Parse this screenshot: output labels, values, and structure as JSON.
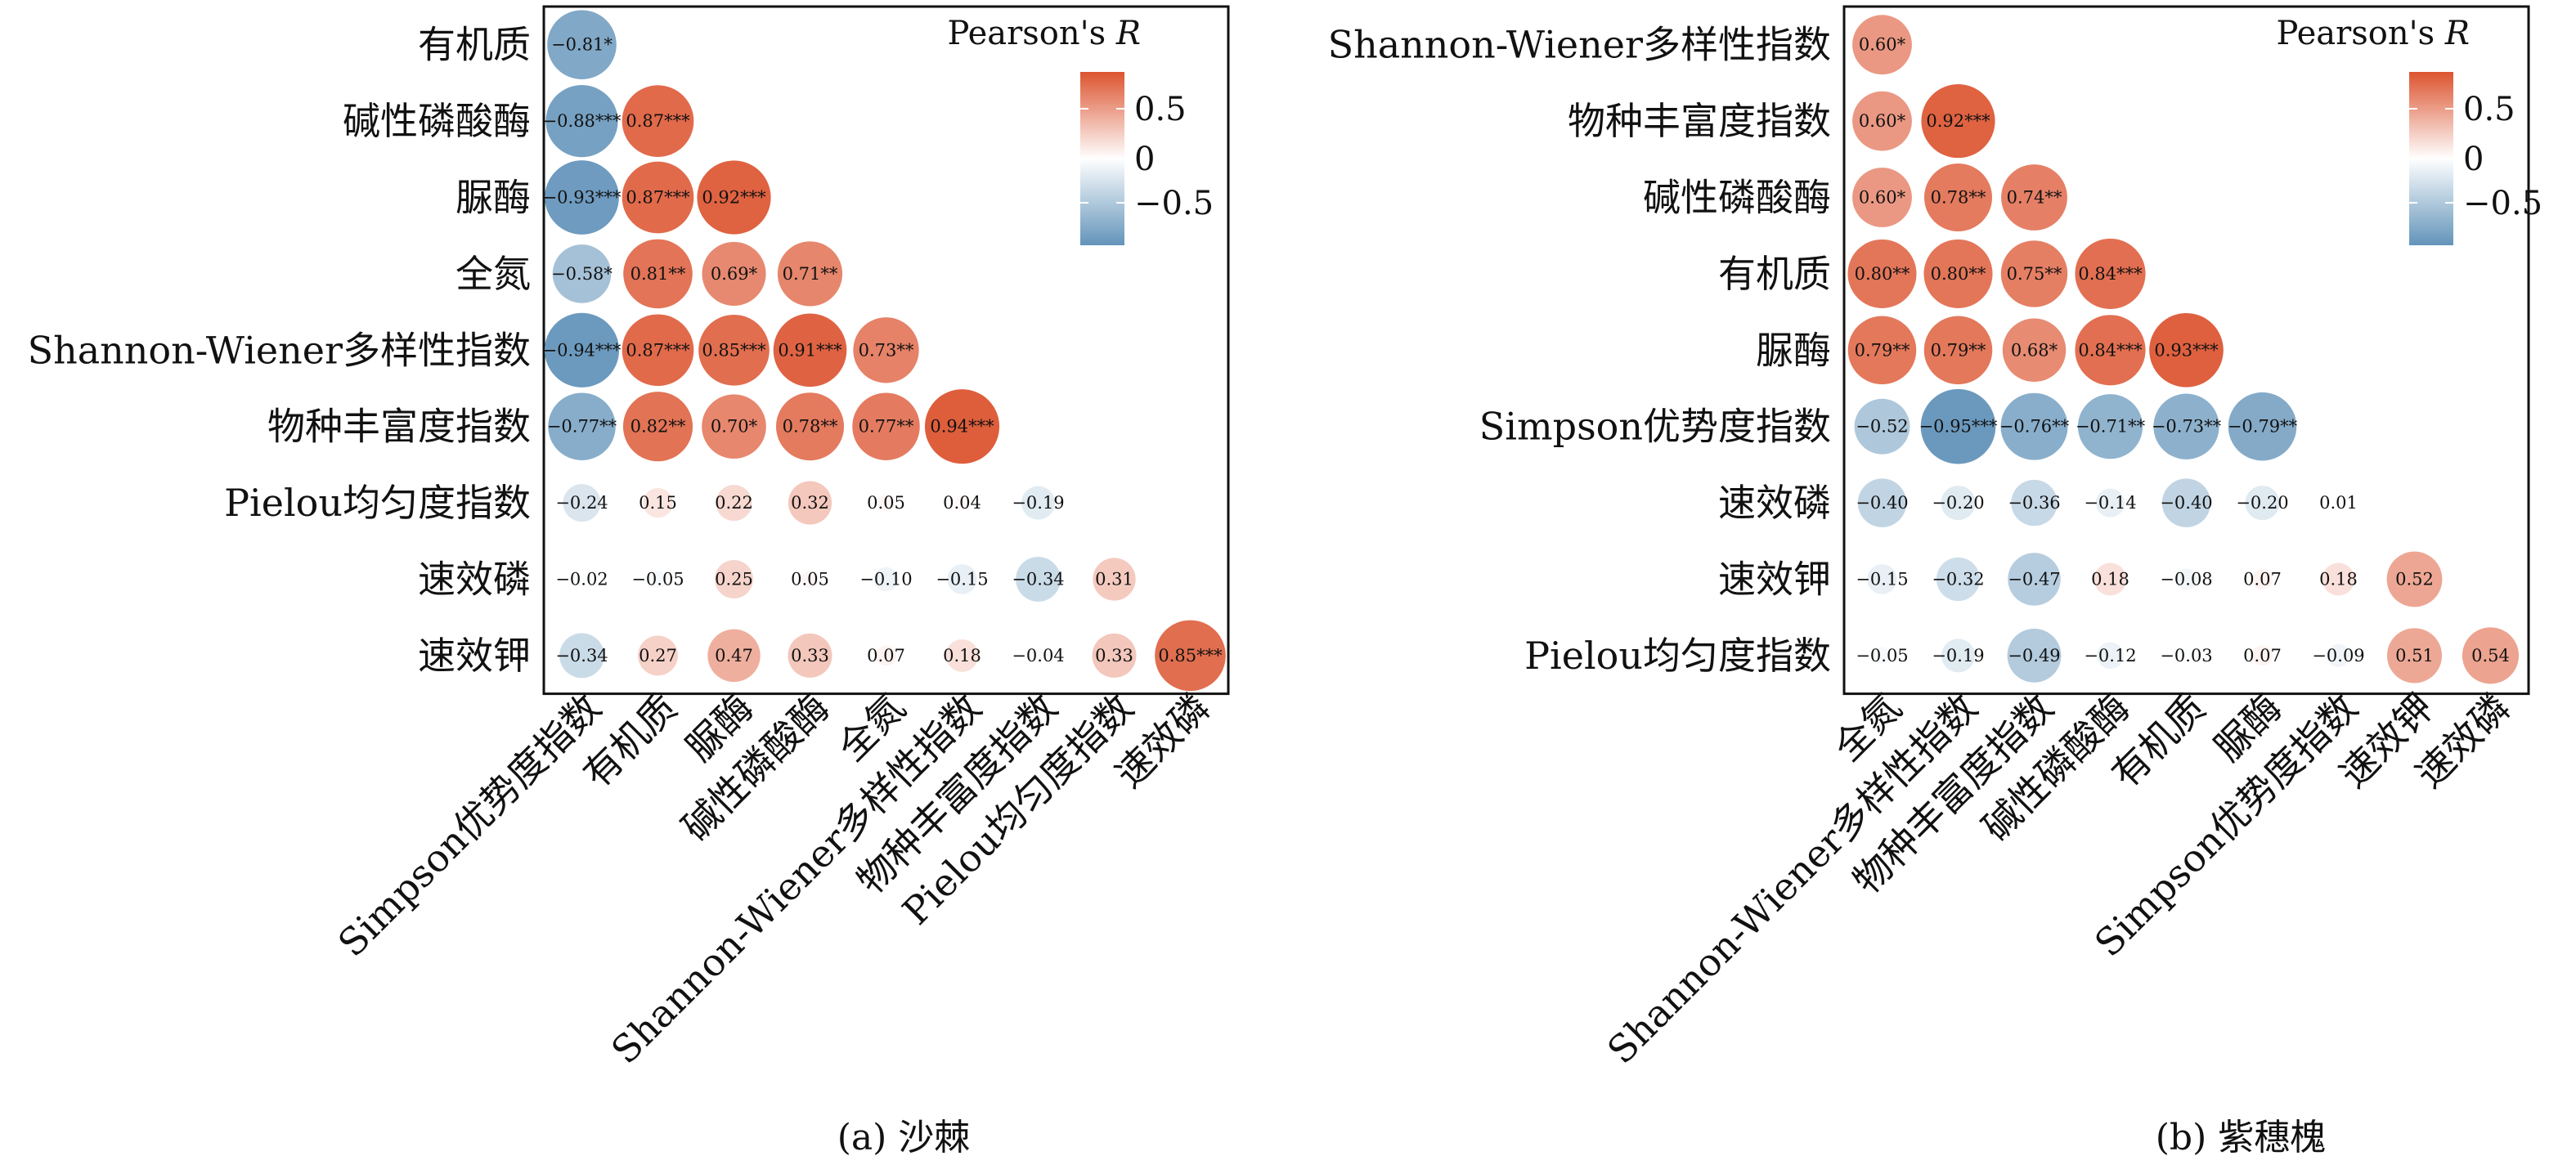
{
  "colors": {
    "positive": "#dc5430",
    "negative": "#6394ba",
    "neutral": "#ffffff"
  },
  "legend_title": "Pearson's R",
  "chart_data": [
    {
      "type": "correlogram",
      "caption": "(a) 沙棘",
      "legend": {
        "title": "Pearson's R",
        "ticks": [
          "0.5",
          "0",
          "−0.5"
        ],
        "range": [
          -1,
          1
        ],
        "placement": "top-right"
      },
      "row_labels": [
        "有机质",
        "碱性磷酸酶",
        "脲酶",
        "全氮",
        "Shannon-Wiener多样性指数",
        "物种丰富度指数",
        "Pielou均匀度指数",
        "速效磷",
        "速效钾"
      ],
      "col_labels": [
        "Simpson优势度指数",
        "有机质",
        "脲酶",
        "碱性磷酸酶",
        "全氮",
        "Shannon-Wiener多样性指数",
        "物种丰富度指数",
        "Pielou均匀度指数",
        "速效磷"
      ],
      "cells": [
        [
          [
            -0.81,
            "*"
          ]
        ],
        [
          [
            -0.88,
            "***"
          ],
          [
            0.87,
            "***"
          ]
        ],
        [
          [
            -0.93,
            "***"
          ],
          [
            0.87,
            "***"
          ],
          [
            0.92,
            "***"
          ]
        ],
        [
          [
            -0.58,
            "*"
          ],
          [
            0.81,
            "**"
          ],
          [
            0.69,
            "*"
          ],
          [
            0.71,
            "**"
          ]
        ],
        [
          [
            -0.94,
            "***"
          ],
          [
            0.87,
            "***"
          ],
          [
            0.85,
            "***"
          ],
          [
            0.91,
            "***"
          ],
          [
            0.73,
            "**"
          ]
        ],
        [
          [
            -0.77,
            "**"
          ],
          [
            0.82,
            "**"
          ],
          [
            0.7,
            "*"
          ],
          [
            0.78,
            "**"
          ],
          [
            0.77,
            "**"
          ],
          [
            0.94,
            "***"
          ]
        ],
        [
          [
            -0.24,
            ""
          ],
          [
            0.15,
            ""
          ],
          [
            0.22,
            ""
          ],
          [
            0.32,
            ""
          ],
          [
            0.05,
            ""
          ],
          [
            0.04,
            ""
          ],
          [
            -0.19,
            ""
          ]
        ],
        [
          [
            -0.02,
            ""
          ],
          [
            -0.05,
            ""
          ],
          [
            0.25,
            ""
          ],
          [
            0.05,
            ""
          ],
          [
            -0.1,
            ""
          ],
          [
            -0.15,
            ""
          ],
          [
            -0.34,
            ""
          ],
          [
            0.31,
            ""
          ]
        ],
        [
          [
            -0.34,
            ""
          ],
          [
            0.27,
            ""
          ],
          [
            0.47,
            ""
          ],
          [
            0.33,
            ""
          ],
          [
            0.07,
            ""
          ],
          [
            0.18,
            ""
          ],
          [
            -0.04,
            ""
          ],
          [
            0.33,
            ""
          ],
          [
            0.85,
            "***"
          ]
        ]
      ]
    },
    {
      "type": "correlogram",
      "caption": "(b) 紫穗槐",
      "legend": {
        "title": "Pearson's R",
        "ticks": [
          "0.5",
          "0",
          "−0.5"
        ],
        "range": [
          -1,
          1
        ],
        "placement": "top-right"
      },
      "row_labels": [
        "Shannon-Wiener多样性指数",
        "物种丰富度指数",
        "碱性磷酸酶",
        "有机质",
        "脲酶",
        "Simpson优势度指数",
        "速效磷",
        "速效钾",
        "Pielou均匀度指数"
      ],
      "col_labels": [
        "全氮",
        "Shannon-Wiener多样性指数",
        "物种丰富度指数",
        "碱性磷酸酶",
        "有机质",
        "脲酶",
        "Simpson优势度指数",
        "速效钾",
        "速效磷"
      ],
      "cells": [
        [
          [
            0.6,
            "*"
          ]
        ],
        [
          [
            0.6,
            "*"
          ],
          [
            0.92,
            "***"
          ]
        ],
        [
          [
            0.6,
            "*"
          ],
          [
            0.78,
            "**"
          ],
          [
            0.74,
            "**"
          ]
        ],
        [
          [
            0.8,
            "**"
          ],
          [
            0.8,
            "**"
          ],
          [
            0.75,
            "**"
          ],
          [
            0.84,
            "***"
          ]
        ],
        [
          [
            0.79,
            "**"
          ],
          [
            0.79,
            "**"
          ],
          [
            0.68,
            "*"
          ],
          [
            0.84,
            "***"
          ],
          [
            0.93,
            "***"
          ]
        ],
        [
          [
            -0.52,
            ""
          ],
          [
            -0.95,
            "***"
          ],
          [
            -0.76,
            "**"
          ],
          [
            -0.71,
            "**"
          ],
          [
            -0.73,
            "**"
          ],
          [
            -0.79,
            "**"
          ]
        ],
        [
          [
            -0.4,
            ""
          ],
          [
            -0.2,
            ""
          ],
          [
            -0.36,
            ""
          ],
          [
            -0.14,
            ""
          ],
          [
            -0.4,
            ""
          ],
          [
            -0.2,
            ""
          ],
          [
            0.01,
            ""
          ]
        ],
        [
          [
            -0.15,
            ""
          ],
          [
            -0.32,
            ""
          ],
          [
            -0.47,
            ""
          ],
          [
            0.18,
            ""
          ],
          [
            -0.08,
            ""
          ],
          [
            0.07,
            ""
          ],
          [
            0.18,
            ""
          ],
          [
            0.52,
            ""
          ]
        ],
        [
          [
            -0.05,
            ""
          ],
          [
            -0.19,
            ""
          ],
          [
            -0.49,
            ""
          ],
          [
            -0.12,
            ""
          ],
          [
            -0.03,
            ""
          ],
          [
            0.07,
            ""
          ],
          [
            -0.09,
            ""
          ],
          [
            0.51,
            ""
          ],
          [
            0.54,
            ""
          ]
        ]
      ]
    }
  ]
}
